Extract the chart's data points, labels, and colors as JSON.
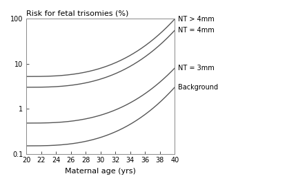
{
  "title": "Risk for fetal trisomies (%)",
  "xlabel": "Maternal age (yrs)",
  "x_min": 20,
  "x_max": 40,
  "y_min": 0.1,
  "y_max": 100,
  "xticks": [
    20,
    22,
    24,
    26,
    28,
    30,
    32,
    34,
    36,
    38,
    40
  ],
  "yticks": [
    0.1,
    1,
    10,
    100
  ],
  "ytick_labels": [
    "0.1",
    "1",
    "10",
    "100"
  ],
  "curves": [
    {
      "label": "NT > 4mm",
      "y_at_20": 5.2,
      "y_at_40": 98,
      "power": 2.8,
      "color": "#555555",
      "lw": 1.0
    },
    {
      "label": "NT = 4mm",
      "y_at_20": 3.0,
      "y_at_40": 55,
      "power": 2.8,
      "color": "#555555",
      "lw": 1.0
    },
    {
      "label": "NT = 3mm",
      "y_at_20": 0.48,
      "y_at_40": 8.0,
      "power": 2.8,
      "color": "#555555",
      "lw": 1.0
    },
    {
      "label": "Background",
      "y_at_20": 0.15,
      "y_at_40": 3.0,
      "power": 2.8,
      "color": "#555555",
      "lw": 1.0
    }
  ],
  "annotation_fontsize": 7,
  "label_fontsize": 8,
  "title_fontsize": 8,
  "tick_fontsize": 7,
  "background_color": "#ffffff"
}
